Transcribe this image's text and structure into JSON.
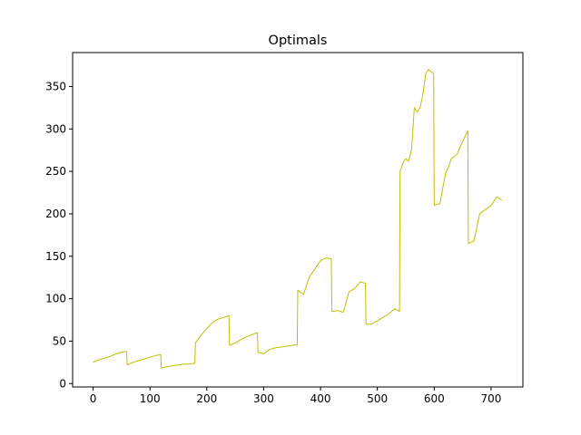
{
  "chart_data": {
    "type": "line",
    "title": "Optimals",
    "xlabel": "",
    "ylabel": "",
    "xlim": [
      -36,
      756
    ],
    "ylim": [
      -4,
      390
    ],
    "x_ticks": [
      0,
      100,
      200,
      300,
      400,
      500,
      600,
      700
    ],
    "y_ticks": [
      0,
      50,
      100,
      150,
      200,
      250,
      300,
      350
    ],
    "grid": false,
    "line_color": "#bfbf00",
    "series": [
      {
        "x": [
          0,
          10,
          20,
          30,
          40,
          50,
          59,
          60,
          70,
          80,
          90,
          100,
          110,
          119,
          120,
          130,
          140,
          150,
          160,
          170,
          179,
          180,
          190,
          200,
          210,
          220,
          230,
          239,
          240,
          250,
          260,
          270,
          280,
          289,
          290,
          300,
          310,
          320,
          330,
          340,
          350,
          359,
          360,
          370,
          380,
          390,
          400,
          410,
          419,
          420,
          430,
          440,
          450,
          460,
          470,
          479,
          480,
          490,
          500,
          510,
          520,
          530,
          539,
          540,
          545,
          550,
          555,
          560,
          565,
          570,
          575,
          580,
          585,
          590,
          599,
          600,
          610,
          620,
          625,
          630,
          640,
          650,
          659,
          660,
          670,
          680,
          690,
          700,
          710,
          719
        ],
        "y": [
          25,
          28,
          30,
          32,
          35,
          37,
          38,
          22,
          25,
          27,
          29,
          31,
          33,
          34,
          18,
          20,
          21,
          22,
          23,
          23,
          24,
          48,
          57,
          65,
          72,
          76,
          78,
          80,
          45,
          48,
          52,
          55,
          58,
          60,
          37,
          35,
          40,
          42,
          43,
          44,
          45,
          46,
          110,
          105,
          125,
          135,
          145,
          148,
          147,
          85,
          86,
          84,
          108,
          112,
          120,
          118,
          70,
          70,
          74,
          78,
          82,
          88,
          85,
          250,
          260,
          265,
          262,
          275,
          325,
          320,
          325,
          340,
          365,
          370,
          365,
          210,
          212,
          248,
          255,
          265,
          270,
          285,
          298,
          165,
          168,
          200,
          205,
          210,
          220,
          216
        ]
      }
    ]
  }
}
